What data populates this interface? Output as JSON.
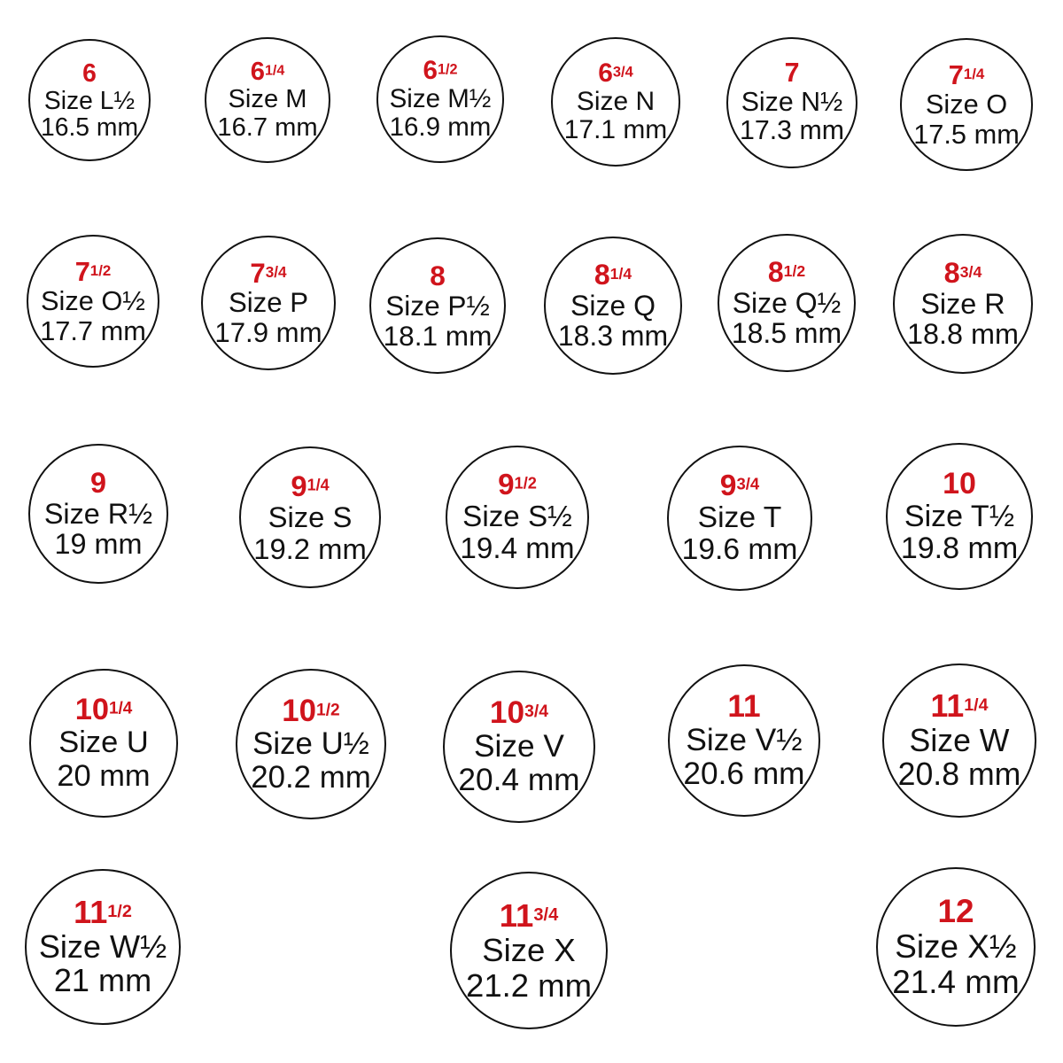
{
  "colors": {
    "us_size": "#d0141c",
    "text": "#111111",
    "outline": "#111111"
  },
  "rings": [
    {
      "us": "6",
      "frac": "",
      "uk": "Size L½",
      "mm": "16.5 mm"
    },
    {
      "us": "6",
      "frac": "1/4",
      "uk": "Size M",
      "mm": "16.7 mm"
    },
    {
      "us": "6",
      "frac": "1/2",
      "uk": "Size M½",
      "mm": "16.9 mm"
    },
    {
      "us": "6",
      "frac": "3/4",
      "uk": "Size N",
      "mm": "17.1 mm"
    },
    {
      "us": "7",
      "frac": "",
      "uk": "Size N½",
      "mm": "17.3 mm"
    },
    {
      "us": "7",
      "frac": "1/4",
      "uk": "Size O",
      "mm": "17.5 mm"
    },
    {
      "us": "7",
      "frac": "1/2",
      "uk": "Size O½",
      "mm": "17.7 mm"
    },
    {
      "us": "7",
      "frac": "3/4",
      "uk": "Size P",
      "mm": "17.9 mm"
    },
    {
      "us": "8",
      "frac": "",
      "uk": "Size P½",
      "mm": "18.1 mm"
    },
    {
      "us": "8",
      "frac": "1/4",
      "uk": "Size Q",
      "mm": "18.3 mm"
    },
    {
      "us": "8",
      "frac": "1/2",
      "uk": "Size Q½",
      "mm": "18.5 mm"
    },
    {
      "us": "8",
      "frac": "3/4",
      "uk": "Size R",
      "mm": "18.8 mm"
    },
    {
      "us": "9",
      "frac": "",
      "uk": "Size R½",
      "mm": "19 mm"
    },
    {
      "us": "9",
      "frac": "1/4",
      "uk": "Size S",
      "mm": "19.2 mm"
    },
    {
      "us": "9",
      "frac": "1/2",
      "uk": "Size S½",
      "mm": "19.4 mm"
    },
    {
      "us": "9",
      "frac": "3/4",
      "uk": "Size T",
      "mm": "19.6 mm"
    },
    {
      "us": "10",
      "frac": "",
      "uk": "Size T½",
      "mm": "19.8 mm"
    },
    {
      "us": "10",
      "frac": "1/4",
      "uk": "Size U",
      "mm": "20 mm"
    },
    {
      "us": "10",
      "frac": "1/2",
      "uk": "Size U½",
      "mm": "20.2 mm"
    },
    {
      "us": "10",
      "frac": "3/4",
      "uk": "Size V",
      "mm": "20.4 mm"
    },
    {
      "us": "11",
      "frac": "",
      "uk": "Size V½",
      "mm": "20.6 mm"
    },
    {
      "us": "11",
      "frac": "1/4",
      "uk": "Size W",
      "mm": "20.8 mm"
    },
    {
      "us": "11",
      "frac": "1/2",
      "uk": "Size W½",
      "mm": "21 mm"
    },
    {
      "us": "11",
      "frac": "3/4",
      "uk": "Size X",
      "mm": "21.2 mm"
    },
    {
      "us": "12",
      "frac": "",
      "uk": "Size X½",
      "mm": "21.4 mm"
    }
  ]
}
